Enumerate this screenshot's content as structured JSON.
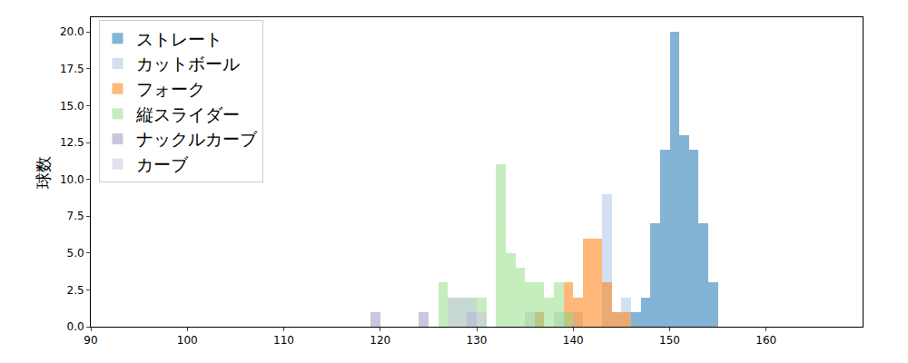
{
  "chart_data": {
    "type": "histogram",
    "y_label": "球数",
    "xlim": [
      90,
      170
    ],
    "xticks": [
      90,
      100,
      110,
      120,
      130,
      140,
      150,
      160
    ],
    "ylim": [
      0,
      21
    ],
    "yticks": [
      {
        "value": 0,
        "label": "0.0"
      },
      2.5,
      {
        "value": 5,
        "label": "5.0"
      },
      7.5,
      {
        "value": 10,
        "label": "10.0"
      },
      12.5,
      {
        "value": 15,
        "label": "15.0"
      },
      17.5,
      {
        "value": 20,
        "label": "20.0"
      }
    ],
    "grid": false,
    "legend": "upper left",
    "series": [
      {
        "name": "ストレート",
        "color": "#1f77b4",
        "bins": [
          146,
          147,
          148,
          149,
          150,
          151,
          152,
          153,
          154,
          155
        ],
        "counts": [
          1,
          2,
          7,
          12,
          20,
          13,
          12,
          7,
          3
        ]
      },
      {
        "name": "カットボール",
        "color": "#aec7e8",
        "bins": [
          135,
          136,
          137,
          138,
          139,
          140,
          141,
          142,
          143,
          144,
          145,
          146
        ],
        "counts": [
          1,
          1,
          0,
          1,
          1,
          1,
          0,
          0,
          9,
          1,
          2
        ]
      },
      {
        "name": "フォーク",
        "color": "#ff7f0e",
        "bins": [
          136,
          137,
          138,
          139,
          140,
          141,
          142,
          143,
          144,
          145,
          146
        ],
        "counts": [
          1,
          0,
          0,
          3,
          2,
          6,
          6,
          3,
          1,
          1
        ]
      },
      {
        "name": "縦スライダー",
        "color": "#98df8a",
        "bins": [
          126,
          127,
          128,
          129,
          130,
          131,
          132,
          133,
          134,
          135,
          136,
          137,
          138,
          139,
          140
        ],
        "counts": [
          3,
          2,
          2,
          2,
          2,
          0,
          11,
          5,
          4,
          3,
          3,
          2,
          3,
          1
        ]
      },
      {
        "name": "ナックルカーブ",
        "color": "#9a9ac8",
        "bins": [
          119,
          120,
          121,
          122,
          123,
          124,
          125,
          126,
          127,
          128,
          129,
          130
        ],
        "counts": [
          1,
          0,
          0,
          0,
          0,
          1,
          0,
          0,
          0,
          0,
          1
        ]
      },
      {
        "name": "カーブ",
        "color": "#c8c8e4",
        "bins": [
          127,
          128,
          129,
          130,
          131
        ],
        "counts": [
          2,
          2,
          2,
          1
        ]
      }
    ]
  }
}
